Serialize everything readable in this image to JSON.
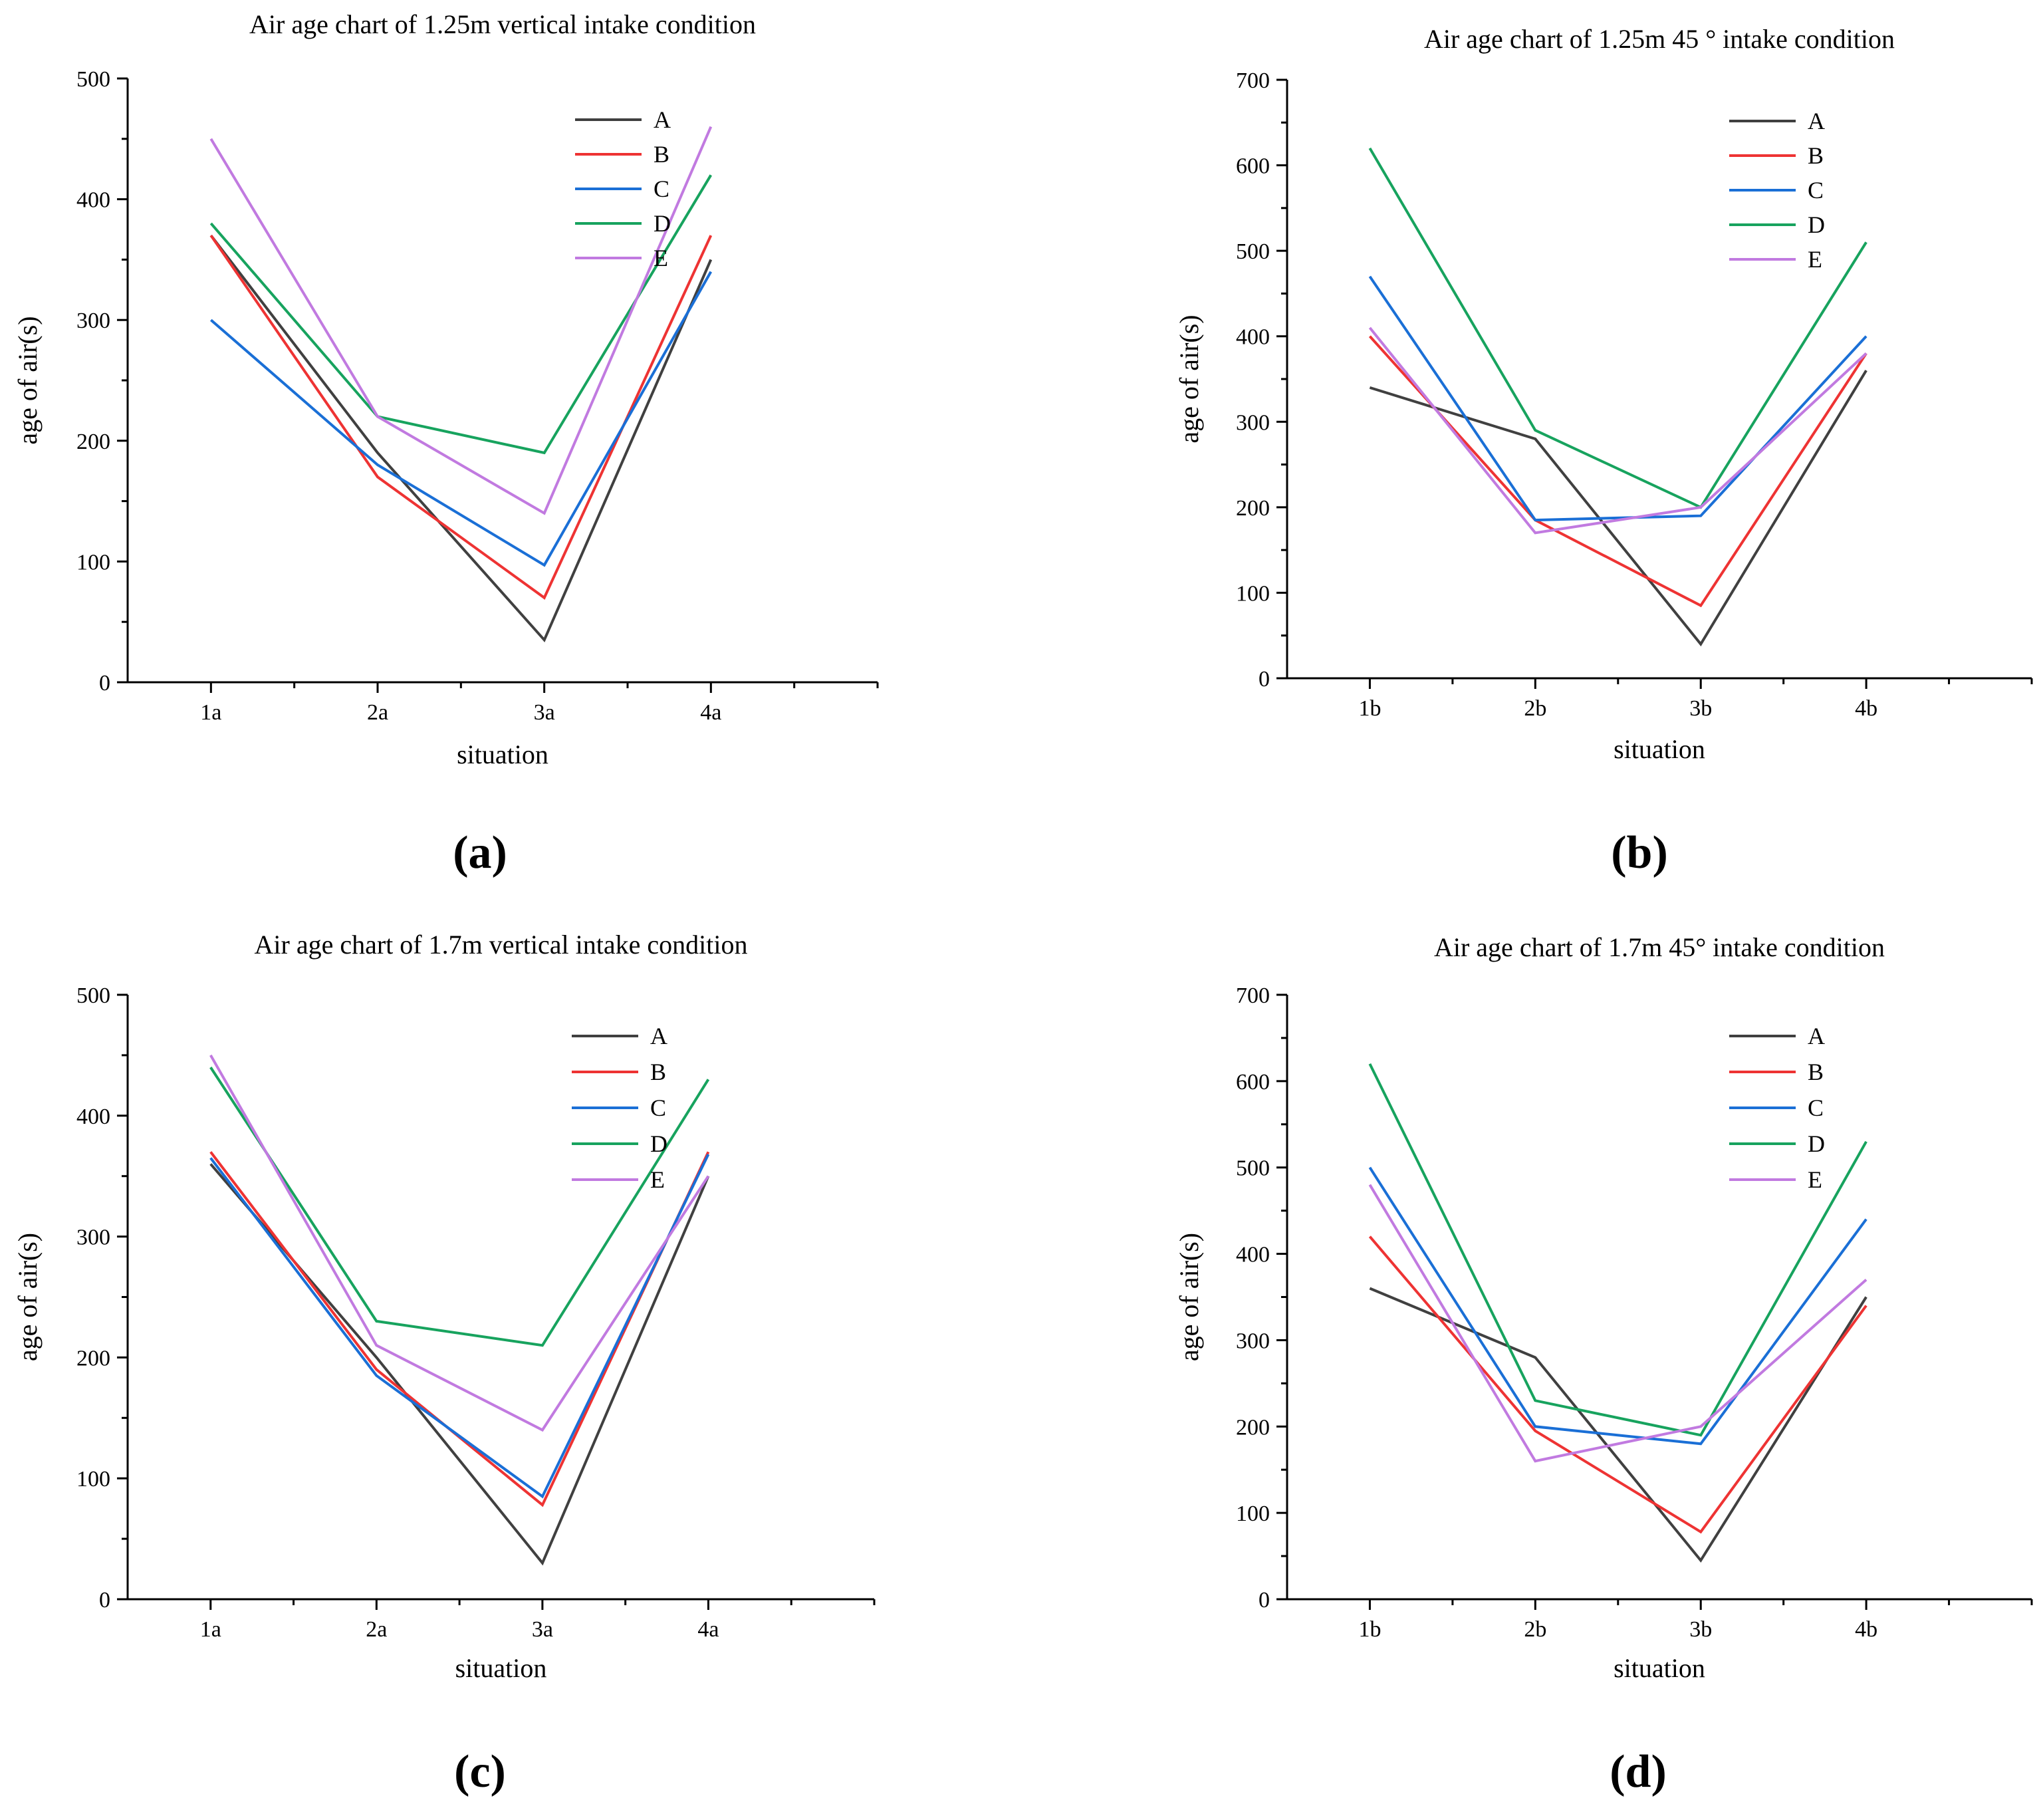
{
  "chart_data": [
    {
      "type": "line",
      "panel_label": "(a)",
      "title": "Air age chart of 1.25m vertical intake condition",
      "xlabel": "situation",
      "ylabel": "age of air(s)",
      "categories": [
        "1a",
        "2a",
        "3a",
        "4a"
      ],
      "ylim": [
        0,
        500
      ],
      "yticks": [
        0,
        100,
        200,
        300,
        400,
        500
      ],
      "yticklabels": [
        "0",
        "100",
        "200",
        "300",
        "400",
        "500"
      ],
      "grid": false,
      "legend_position": "top-right",
      "series": [
        {
          "name": "A",
          "color": "#404040",
          "values": [
            370,
            190,
            35,
            350
          ]
        },
        {
          "name": "B",
          "color": "#ee3333",
          "values": [
            370,
            170,
            70,
            370
          ]
        },
        {
          "name": "C",
          "color": "#1a6fd6",
          "values": [
            300,
            180,
            97,
            340
          ]
        },
        {
          "name": "D",
          "color": "#17a35e",
          "values": [
            380,
            220,
            190,
            420
          ]
        },
        {
          "name": "E",
          "color": "#c17ae0",
          "values": [
            450,
            220,
            140,
            460
          ]
        }
      ]
    },
    {
      "type": "line",
      "panel_label": "(b)",
      "title": "Air age chart of 1.25m 45 °  intake condition",
      "xlabel": "situation",
      "ylabel": "age of air(s)",
      "categories": [
        "1b",
        "2b",
        "3b",
        "4b"
      ],
      "ylim": [
        0,
        700
      ],
      "yticks": [
        0,
        100,
        200,
        300,
        400,
        500,
        600,
        700
      ],
      "yticklabels": [
        "0",
        "100",
        "200",
        "300",
        "400",
        "500",
        "600",
        "700"
      ],
      "grid": false,
      "legend_position": "top-right",
      "series": [
        {
          "name": "A",
          "color": "#404040",
          "values": [
            340,
            280,
            40,
            360
          ]
        },
        {
          "name": "B",
          "color": "#ee3333",
          "values": [
            400,
            185,
            85,
            380
          ]
        },
        {
          "name": "C",
          "color": "#1a6fd6",
          "values": [
            470,
            185,
            190,
            400
          ]
        },
        {
          "name": "D",
          "color": "#17a35e",
          "values": [
            620,
            290,
            200,
            510
          ]
        },
        {
          "name": "E",
          "color": "#c17ae0",
          "values": [
            410,
            170,
            200,
            380
          ]
        }
      ]
    },
    {
      "type": "line",
      "panel_label": "(c)",
      "title": "Air age chart of 1.7m vertical intake condition",
      "xlabel": "situation",
      "ylabel": "age of air(s)",
      "categories": [
        "1a",
        "2a",
        "3a",
        "4a"
      ],
      "ylim": [
        0,
        500
      ],
      "yticks": [
        0,
        100,
        200,
        300,
        400,
        500
      ],
      "yticklabels": [
        "0",
        "100",
        "200",
        "300",
        "400",
        "500"
      ],
      "grid": false,
      "legend_position": "top-right",
      "series": [
        {
          "name": "A",
          "color": "#404040",
          "values": [
            360,
            200,
            30,
            350
          ]
        },
        {
          "name": "B",
          "color": "#ee3333",
          "values": [
            370,
            190,
            78,
            370
          ]
        },
        {
          "name": "C",
          "color": "#1a6fd6",
          "values": [
            365,
            185,
            85,
            368
          ]
        },
        {
          "name": "D",
          "color": "#17a35e",
          "values": [
            440,
            230,
            210,
            430
          ]
        },
        {
          "name": "E",
          "color": "#c17ae0",
          "values": [
            450,
            210,
            140,
            350
          ]
        }
      ]
    },
    {
      "type": "line",
      "panel_label": "(d)",
      "title": "Air age chart of 1.7m 45° intake condition",
      "xlabel": "situation",
      "ylabel": "age of air(s)",
      "categories": [
        "1b",
        "2b",
        "3b",
        "4b"
      ],
      "ylim": [
        0,
        700
      ],
      "yticks": [
        0,
        100,
        200,
        300,
        400,
        500,
        600,
        700
      ],
      "yticklabels": [
        "0",
        "100",
        "200",
        "300",
        "400",
        "500",
        "600",
        "700"
      ],
      "grid": false,
      "legend_position": "top-right",
      "series": [
        {
          "name": "A",
          "color": "#404040",
          "values": [
            360,
            280,
            45,
            350
          ]
        },
        {
          "name": "B",
          "color": "#ee3333",
          "values": [
            420,
            195,
            78,
            340
          ]
        },
        {
          "name": "C",
          "color": "#1a6fd6",
          "values": [
            500,
            200,
            180,
            440
          ]
        },
        {
          "name": "D",
          "color": "#17a35e",
          "values": [
            620,
            230,
            190,
            530
          ]
        },
        {
          "name": "E",
          "color": "#c17ae0",
          "values": [
            480,
            160,
            200,
            370
          ]
        }
      ]
    }
  ]
}
